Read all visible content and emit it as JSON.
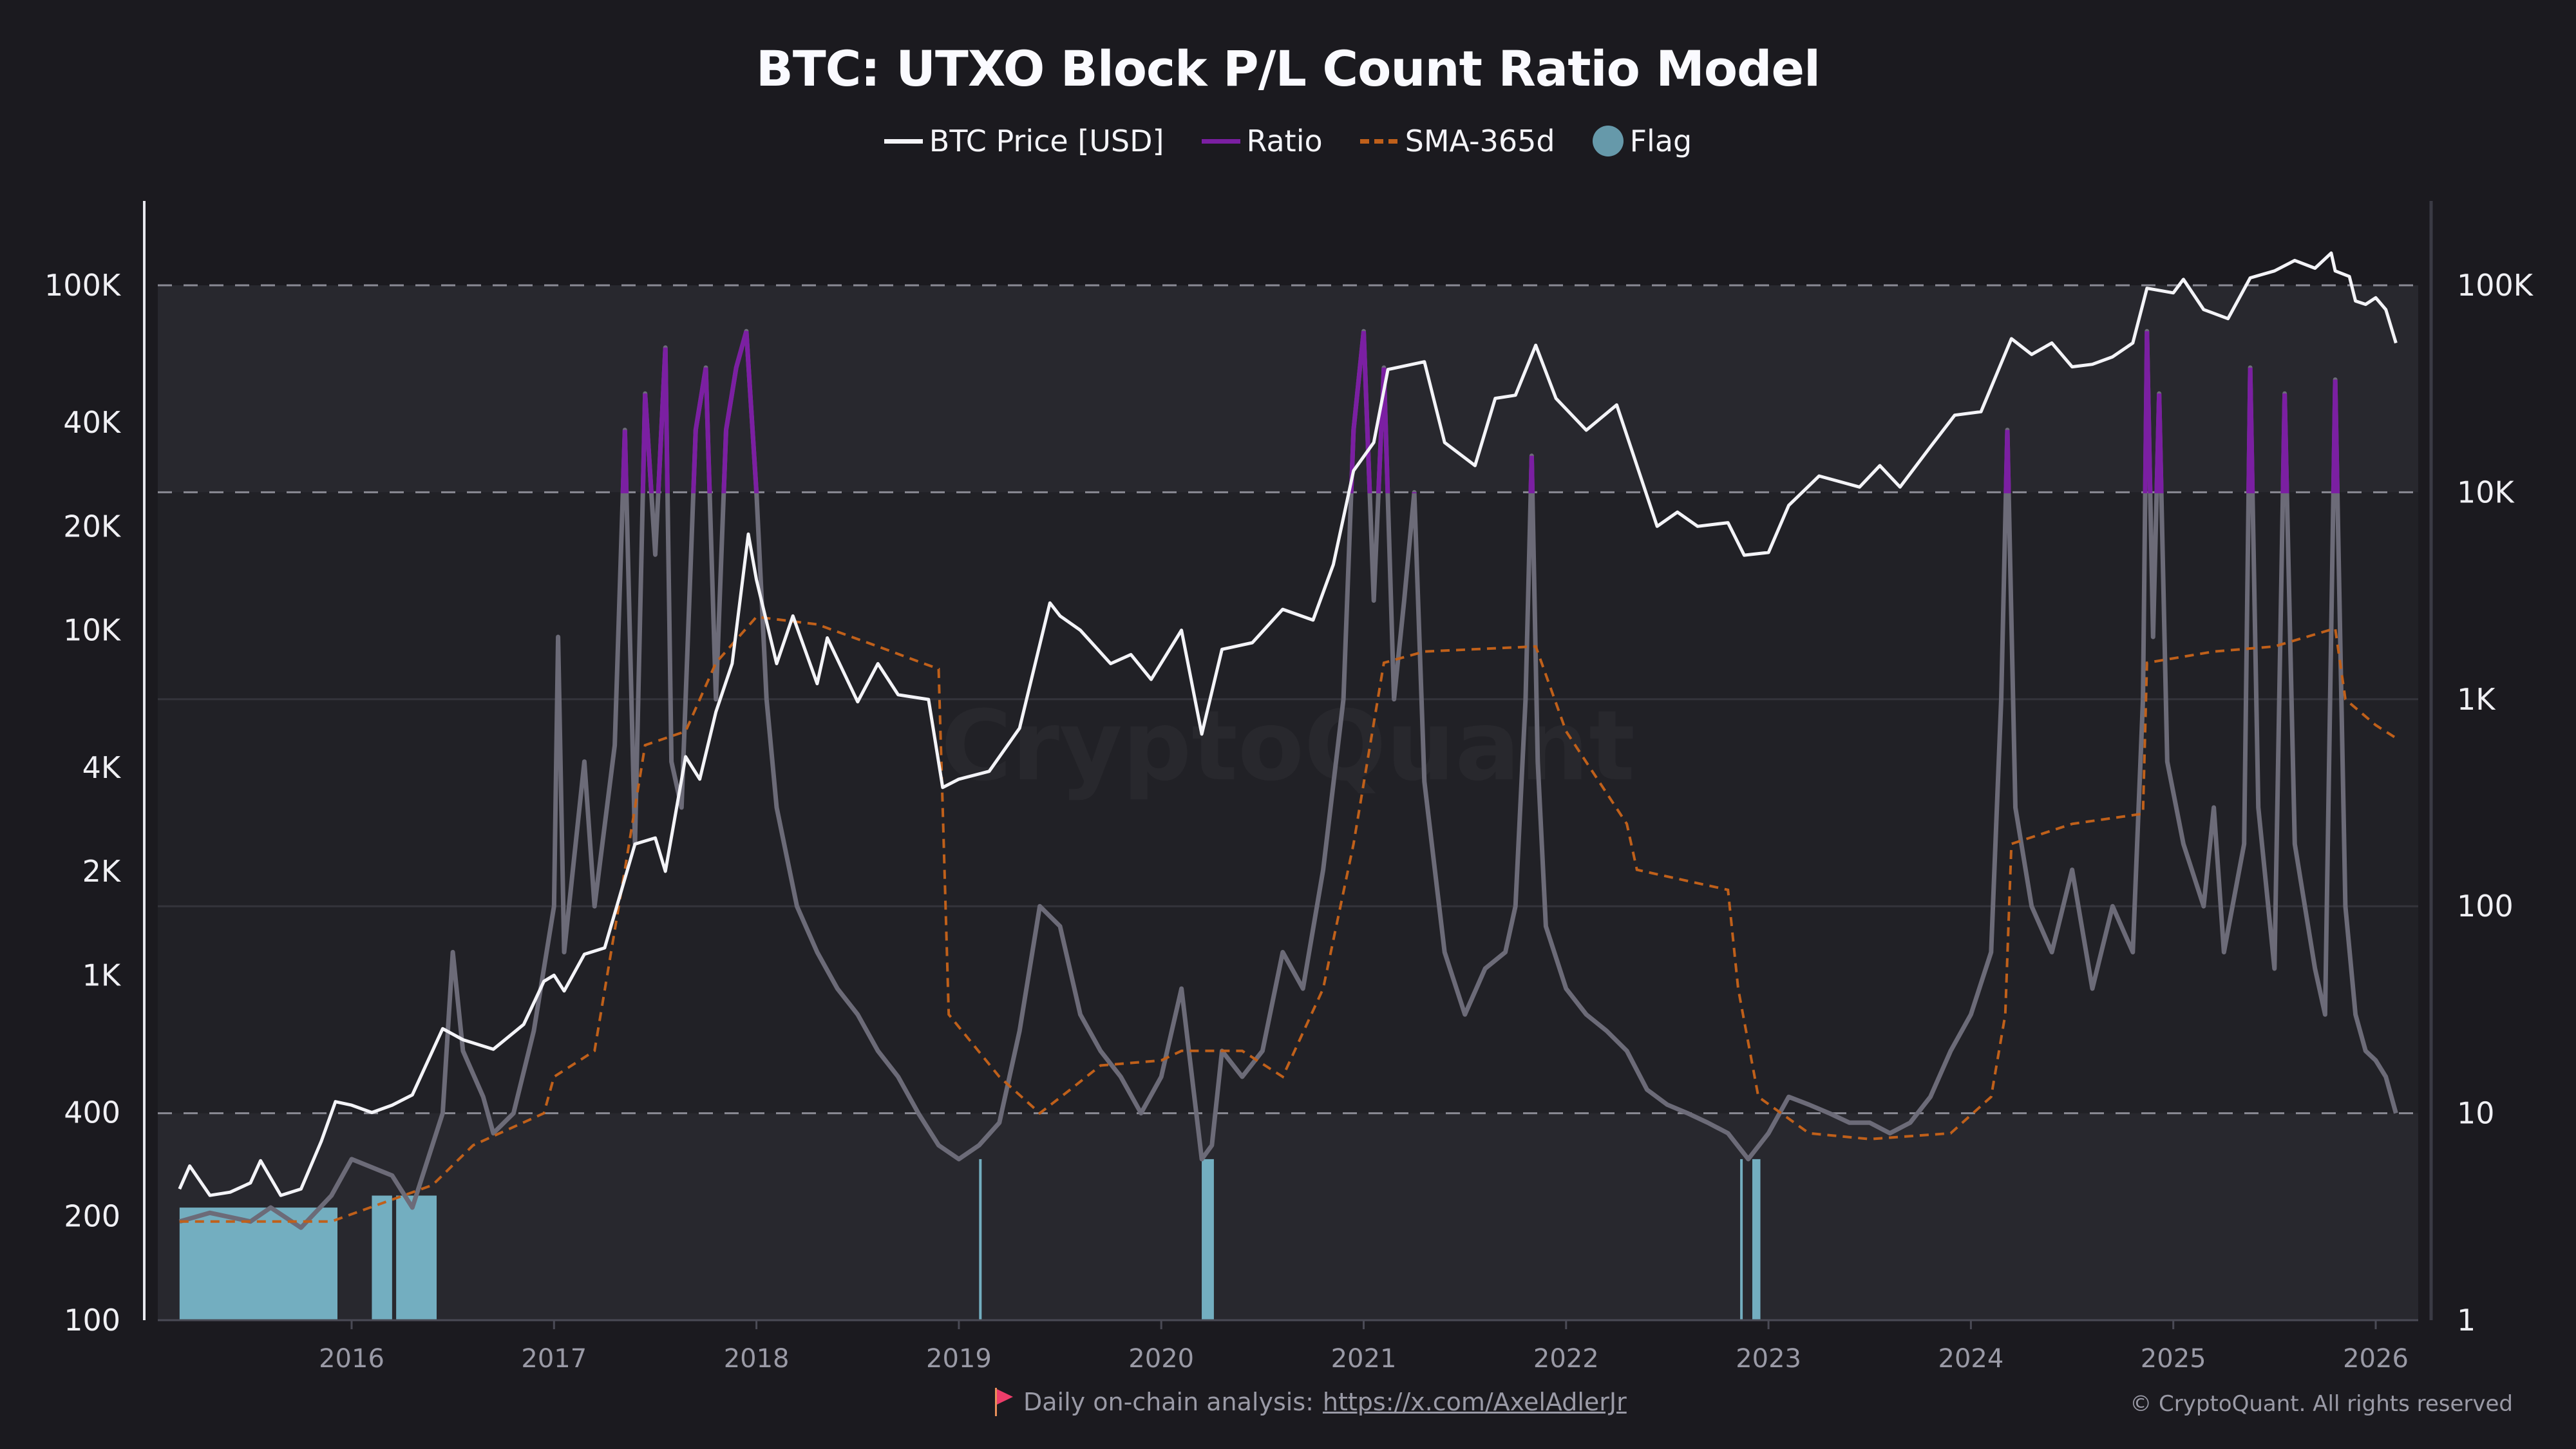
{
  "chart_data": {
    "type": "line",
    "title": "BTC: UTXO Block P/L Count Ratio Model",
    "legend": [
      {
        "label": "BTC Price [USD]",
        "color": "#ffffff",
        "style": "solid"
      },
      {
        "label": "Ratio",
        "color": "#7b1fa2",
        "style": "solid"
      },
      {
        "label": "SMA-365d",
        "color": "#c0601a",
        "style": "dashed"
      },
      {
        "label": "Flag",
        "color": "#6699aa",
        "style": "dot"
      }
    ],
    "legend_position": "top-center",
    "watermark": "CryptoQuant",
    "x_ticks": [
      "2016",
      "2017",
      "2018",
      "2019",
      "2020",
      "2021",
      "2022",
      "2023",
      "2024",
      "2025",
      "2026"
    ],
    "xlim": [
      2015.0,
      2026.2
    ],
    "left_axis": {
      "scale": "log",
      "ylim": [
        100,
        200000
      ],
      "tick_values": [
        100,
        200,
        400,
        1000,
        2000,
        4000,
        10000,
        20000,
        40000,
        100000
      ],
      "tick_labels": [
        "100",
        "200",
        "400",
        "1K",
        "2K",
        "4K",
        "10K",
        "20K",
        "40K",
        "100K"
      ]
    },
    "right_axis": {
      "scale": "log",
      "ylim": [
        1,
        300000
      ],
      "tick_values": [
        1,
        10,
        100,
        1000,
        10000,
        100000
      ],
      "tick_labels": [
        "1",
        "10",
        "100",
        "1K",
        "10K",
        "100K"
      ]
    },
    "thresholds": {
      "upper": 10000,
      "lower": 10,
      "top_band": 100000
    },
    "colors": {
      "price": "#f4f4f8",
      "ratio": "#6c6b78",
      "ratio_high": "#7b1fa2",
      "sma": "#c0601a",
      "flag": "#7bbcd0"
    },
    "price": [
      [
        2015.15,
        240
      ],
      [
        2015.2,
        280
      ],
      [
        2015.3,
        230
      ],
      [
        2015.4,
        235
      ],
      [
        2015.5,
        250
      ],
      [
        2015.55,
        290
      ],
      [
        2015.65,
        230
      ],
      [
        2015.75,
        240
      ],
      [
        2015.85,
        330
      ],
      [
        2015.92,
        430
      ],
      [
        2016.0,
        420
      ],
      [
        2016.1,
        400
      ],
      [
        2016.2,
        420
      ],
      [
        2016.3,
        450
      ],
      [
        2016.45,
        700
      ],
      [
        2016.55,
        650
      ],
      [
        2016.7,
        610
      ],
      [
        2016.85,
        720
      ],
      [
        2016.95,
        960
      ],
      [
        2017.0,
        1000
      ],
      [
        2017.05,
        900
      ],
      [
        2017.15,
        1150
      ],
      [
        2017.25,
        1200
      ],
      [
        2017.4,
        2400
      ],
      [
        2017.5,
        2500
      ],
      [
        2017.55,
        2000
      ],
      [
        2017.65,
        4300
      ],
      [
        2017.72,
        3700
      ],
      [
        2017.8,
        5800
      ],
      [
        2017.88,
        8000
      ],
      [
        2017.96,
        19000
      ],
      [
        2018.0,
        14000
      ],
      [
        2018.1,
        8000
      ],
      [
        2018.18,
        11000
      ],
      [
        2018.3,
        7000
      ],
      [
        2018.35,
        9500
      ],
      [
        2018.5,
        6200
      ],
      [
        2018.6,
        8000
      ],
      [
        2018.7,
        6500
      ],
      [
        2018.85,
        6300
      ],
      [
        2018.92,
        3500
      ],
      [
        2019.0,
        3700
      ],
      [
        2019.15,
        3900
      ],
      [
        2019.3,
        5200
      ],
      [
        2019.45,
        12000
      ],
      [
        2019.5,
        11000
      ],
      [
        2019.6,
        10000
      ],
      [
        2019.75,
        8000
      ],
      [
        2019.85,
        8500
      ],
      [
        2019.95,
        7200
      ],
      [
        2020.1,
        10000
      ],
      [
        2020.2,
        5000
      ],
      [
        2020.3,
        8800
      ],
      [
        2020.45,
        9200
      ],
      [
        2020.6,
        11500
      ],
      [
        2020.75,
        10700
      ],
      [
        2020.85,
        15500
      ],
      [
        2020.95,
        29000
      ],
      [
        2021.05,
        35000
      ],
      [
        2021.12,
        57000
      ],
      [
        2021.3,
        60000
      ],
      [
        2021.4,
        35000
      ],
      [
        2021.55,
        30000
      ],
      [
        2021.65,
        47000
      ],
      [
        2021.75,
        48000
      ],
      [
        2021.85,
        67000
      ],
      [
        2021.95,
        47000
      ],
      [
        2022.1,
        38000
      ],
      [
        2022.25,
        45000
      ],
      [
        2022.35,
        30000
      ],
      [
        2022.45,
        20000
      ],
      [
        2022.55,
        22000
      ],
      [
        2022.65,
        20000
      ],
      [
        2022.8,
        20500
      ],
      [
        2022.88,
        16500
      ],
      [
        2023.0,
        16800
      ],
      [
        2023.1,
        23000
      ],
      [
        2023.25,
        28000
      ],
      [
        2023.45,
        26000
      ],
      [
        2023.55,
        30000
      ],
      [
        2023.65,
        26000
      ],
      [
        2023.8,
        34000
      ],
      [
        2023.92,
        42000
      ],
      [
        2024.05,
        43000
      ],
      [
        2024.2,
        70000
      ],
      [
        2024.3,
        63000
      ],
      [
        2024.4,
        68000
      ],
      [
        2024.5,
        58000
      ],
      [
        2024.6,
        59000
      ],
      [
        2024.7,
        62000
      ],
      [
        2024.8,
        68000
      ],
      [
        2024.87,
        98000
      ],
      [
        2025.0,
        95000
      ],
      [
        2025.05,
        104000
      ],
      [
        2025.15,
        85000
      ],
      [
        2025.27,
        80000
      ],
      [
        2025.38,
        105000
      ],
      [
        2025.5,
        110000
      ],
      [
        2025.6,
        118000
      ],
      [
        2025.7,
        112000
      ],
      [
        2025.78,
        124000
      ],
      [
        2025.8,
        110000
      ],
      [
        2025.87,
        106000
      ],
      [
        2025.9,
        90000
      ],
      [
        2025.95,
        88000
      ],
      [
        2026.0,
        92000
      ],
      [
        2026.05,
        85000
      ],
      [
        2026.1,
        68000
      ]
    ],
    "ratio": [
      [
        2015.15,
        3
      ],
      [
        2015.3,
        3.3
      ],
      [
        2015.5,
        3
      ],
      [
        2015.6,
        3.5
      ],
      [
        2015.75,
        2.8
      ],
      [
        2015.9,
        4
      ],
      [
        2016.0,
        6
      ],
      [
        2016.2,
        5
      ],
      [
        2016.3,
        3.5
      ],
      [
        2016.45,
        10
      ],
      [
        2016.5,
        60
      ],
      [
        2016.55,
        20
      ],
      [
        2016.65,
        12
      ],
      [
        2016.7,
        8
      ],
      [
        2016.8,
        10
      ],
      [
        2016.9,
        25
      ],
      [
        2017.0,
        100
      ],
      [
        2017.02,
        2000
      ],
      [
        2017.05,
        60
      ],
      [
        2017.15,
        500
      ],
      [
        2017.2,
        100
      ],
      [
        2017.3,
        600
      ],
      [
        2017.35,
        20000
      ],
      [
        2017.4,
        200
      ],
      [
        2017.45,
        30000
      ],
      [
        2017.5,
        5000
      ],
      [
        2017.55,
        50000
      ],
      [
        2017.58,
        500
      ],
      [
        2017.63,
        300
      ],
      [
        2017.7,
        20000
      ],
      [
        2017.75,
        40000
      ],
      [
        2017.8,
        1000
      ],
      [
        2017.85,
        20000
      ],
      [
        2017.9,
        40000
      ],
      [
        2017.95,
        60000
      ],
      [
        2018.0,
        10000
      ],
      [
        2018.05,
        1000
      ],
      [
        2018.1,
        300
      ],
      [
        2018.2,
        100
      ],
      [
        2018.3,
        60
      ],
      [
        2018.4,
        40
      ],
      [
        2018.5,
        30
      ],
      [
        2018.6,
        20
      ],
      [
        2018.7,
        15
      ],
      [
        2018.8,
        10
      ],
      [
        2018.9,
        7
      ],
      [
        2019.0,
        6
      ],
      [
        2019.1,
        7
      ],
      [
        2019.2,
        9
      ],
      [
        2019.3,
        25
      ],
      [
        2019.4,
        100
      ],
      [
        2019.5,
        80
      ],
      [
        2019.6,
        30
      ],
      [
        2019.7,
        20
      ],
      [
        2019.8,
        15
      ],
      [
        2019.9,
        10
      ],
      [
        2020.0,
        15
      ],
      [
        2020.1,
        40
      ],
      [
        2020.2,
        6
      ],
      [
        2020.25,
        7
      ],
      [
        2020.3,
        20
      ],
      [
        2020.4,
        15
      ],
      [
        2020.5,
        20
      ],
      [
        2020.6,
        60
      ],
      [
        2020.7,
        40
      ],
      [
        2020.8,
        150
      ],
      [
        2020.9,
        1000
      ],
      [
        2020.95,
        20000
      ],
      [
        2021.0,
        60000
      ],
      [
        2021.05,
        3000
      ],
      [
        2021.1,
        40000
      ],
      [
        2021.15,
        1000
      ],
      [
        2021.2,
        3000
      ],
      [
        2021.25,
        10000
      ],
      [
        2021.3,
        400
      ],
      [
        2021.4,
        60
      ],
      [
        2021.5,
        30
      ],
      [
        2021.6,
        50
      ],
      [
        2021.7,
        60
      ],
      [
        2021.75,
        100
      ],
      [
        2021.8,
        1000
      ],
      [
        2021.83,
        15000
      ],
      [
        2021.86,
        500
      ],
      [
        2021.9,
        80
      ],
      [
        2022.0,
        40
      ],
      [
        2022.1,
        30
      ],
      [
        2022.2,
        25
      ],
      [
        2022.3,
        20
      ],
      [
        2022.4,
        13
      ],
      [
        2022.5,
        11
      ],
      [
        2022.6,
        10
      ],
      [
        2022.7,
        9
      ],
      [
        2022.8,
        8
      ],
      [
        2022.9,
        6
      ],
      [
        2023.0,
        8
      ],
      [
        2023.1,
        12
      ],
      [
        2023.2,
        11
      ],
      [
        2023.3,
        10
      ],
      [
        2023.4,
        9
      ],
      [
        2023.5,
        9
      ],
      [
        2023.6,
        8
      ],
      [
        2023.7,
        9
      ],
      [
        2023.8,
        12
      ],
      [
        2023.9,
        20
      ],
      [
        2024.0,
        30
      ],
      [
        2024.1,
        60
      ],
      [
        2024.15,
        1000
      ],
      [
        2024.18,
        20000
      ],
      [
        2024.22,
        300
      ],
      [
        2024.3,
        100
      ],
      [
        2024.4,
        60
      ],
      [
        2024.5,
        150
      ],
      [
        2024.6,
        40
      ],
      [
        2024.7,
        100
      ],
      [
        2024.8,
        60
      ],
      [
        2024.85,
        1000
      ],
      [
        2024.87,
        60000
      ],
      [
        2024.9,
        2000
      ],
      [
        2024.93,
        30000
      ],
      [
        2024.97,
        500
      ],
      [
        2025.05,
        200
      ],
      [
        2025.15,
        100
      ],
      [
        2025.2,
        300
      ],
      [
        2025.25,
        60
      ],
      [
        2025.35,
        200
      ],
      [
        2025.38,
        40000
      ],
      [
        2025.42,
        300
      ],
      [
        2025.5,
        50
      ],
      [
        2025.55,
        30000
      ],
      [
        2025.6,
        200
      ],
      [
        2025.7,
        50
      ],
      [
        2025.75,
        30
      ],
      [
        2025.8,
        35000
      ],
      [
        2025.85,
        100
      ],
      [
        2025.9,
        30
      ],
      [
        2025.95,
        20
      ],
      [
        2026.0,
        18
      ],
      [
        2026.05,
        15
      ],
      [
        2026.1,
        10
      ]
    ],
    "sma_365d": [
      [
        2015.15,
        3
      ],
      [
        2015.9,
        3
      ],
      [
        2016.4,
        4.5
      ],
      [
        2016.6,
        7
      ],
      [
        2016.95,
        10
      ],
      [
        2017.0,
        15
      ],
      [
        2017.2,
        20
      ],
      [
        2017.35,
        150
      ],
      [
        2017.45,
        600
      ],
      [
        2017.65,
        700
      ],
      [
        2017.8,
        1500
      ],
      [
        2018.0,
        2500
      ],
      [
        2018.3,
        2300
      ],
      [
        2018.6,
        1800
      ],
      [
        2018.9,
        1400
      ],
      [
        2018.95,
        30
      ],
      [
        2019.2,
        15
      ],
      [
        2019.4,
        10
      ],
      [
        2019.55,
        13
      ],
      [
        2019.7,
        17
      ],
      [
        2020.0,
        18
      ],
      [
        2020.1,
        20
      ],
      [
        2020.4,
        20
      ],
      [
        2020.6,
        15
      ],
      [
        2020.8,
        40
      ],
      [
        2020.95,
        200
      ],
      [
        2021.1,
        1500
      ],
      [
        2021.3,
        1700
      ],
      [
        2021.85,
        1800
      ],
      [
        2022.0,
        700
      ],
      [
        2022.3,
        250
      ],
      [
        2022.35,
        150
      ],
      [
        2022.8,
        120
      ],
      [
        2022.85,
        40
      ],
      [
        2022.95,
        12
      ],
      [
        2023.2,
        8
      ],
      [
        2023.5,
        7.5
      ],
      [
        2023.9,
        8
      ],
      [
        2024.1,
        12
      ],
      [
        2024.17,
        30
      ],
      [
        2024.2,
        200
      ],
      [
        2024.5,
        250
      ],
      [
        2024.85,
        280
      ],
      [
        2024.87,
        1500
      ],
      [
        2025.2,
        1700
      ],
      [
        2025.5,
        1800
      ],
      [
        2025.8,
        2200
      ],
      [
        2025.85,
        1000
      ],
      [
        2026.0,
        750
      ],
      [
        2026.1,
        650
      ]
    ],
    "flags": [
      [
        2015.15,
        2015.93,
        3.5
      ],
      [
        2016.1,
        2016.2,
        4
      ],
      [
        2016.22,
        2016.42,
        4
      ],
      [
        2019.1,
        2019.11,
        6
      ],
      [
        2020.2,
        2020.26,
        6
      ],
      [
        2022.86,
        2022.87,
        6
      ],
      [
        2022.92,
        2022.96,
        6
      ]
    ]
  },
  "footer": {
    "text": "Daily on-chain analysis:",
    "link": "https://x.com/AxelAdlerJr",
    "copyright": "© CryptoQuant. All rights reserved"
  }
}
